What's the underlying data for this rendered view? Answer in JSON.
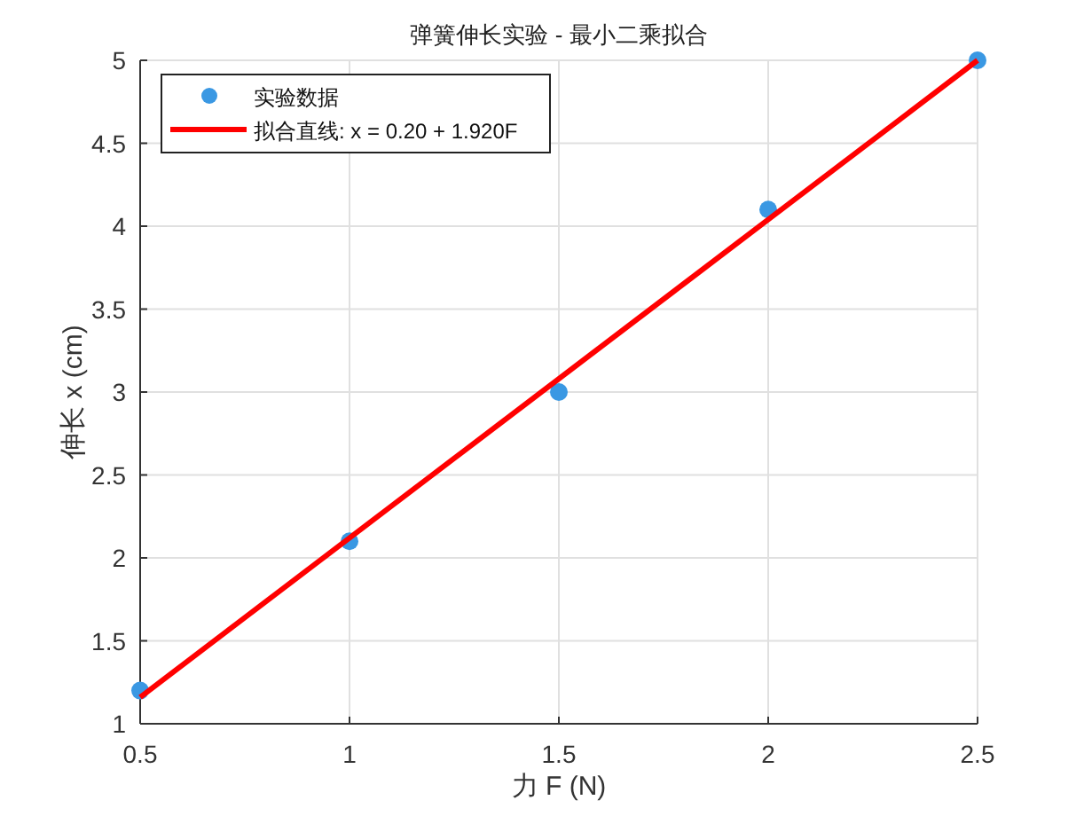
{
  "chart_data": {
    "type": "scatter",
    "title": "弹簧伸长实验 - 最小二乘拟合",
    "xlabel": "力 F (N)",
    "ylabel": "伸长 x (cm)",
    "x": [
      0.5,
      1,
      1.5,
      2,
      2.5
    ],
    "series": [
      {
        "name": "实验数据",
        "marker": "circle",
        "color": "#3a98e3",
        "values": [
          1.2,
          2.1,
          3.0,
          4.1,
          5.0
        ]
      },
      {
        "name": "拟合直线: x = 0.20 + 1.920F",
        "type": "line",
        "color": "#ff0000",
        "x": [
          0.5,
          2.5
        ],
        "values": [
          1.16,
          5.0
        ]
      }
    ],
    "xlim": [
      0.5,
      2.5
    ],
    "xticks": [
      0.5,
      1,
      1.5,
      2,
      2.5
    ],
    "ylim": [
      1,
      5
    ],
    "yticks": [
      1,
      1.5,
      2,
      2.5,
      3,
      3.5,
      4,
      4.5,
      5
    ],
    "grid": true,
    "legend": "top left",
    "line_style": "solid"
  }
}
